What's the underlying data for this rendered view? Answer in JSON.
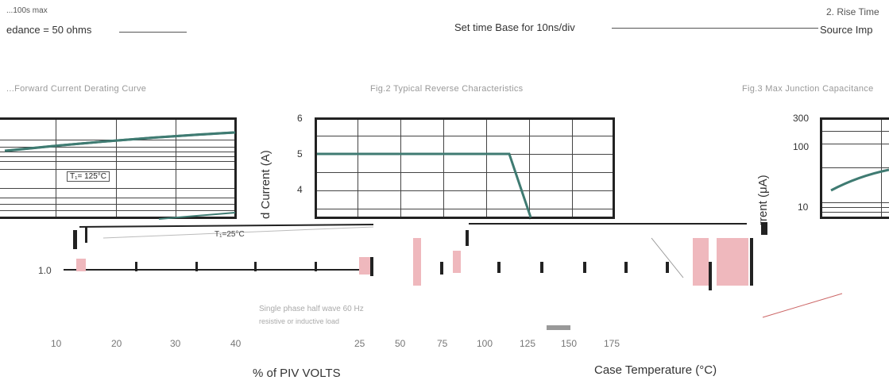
{
  "header": {
    "top_left": "...100s max",
    "impedance_left": "edance = 50 ohms",
    "time_base": "Set time Base for 10ns/div",
    "top_right": "2. Rise Time",
    "impedance_right": "Source Imp"
  },
  "captions": {
    "fig1": "...Forward Current Derating Curve",
    "fig2": "Fig.2 Typical Reverse Characteristics",
    "fig3": "Fig.3 Max Junction Capacitance"
  },
  "fig1": {
    "curve_label": "T₁= 125°C",
    "curve_label2": "T₁=25°C",
    "value_label": "1.0",
    "x_ticks": [
      "10",
      "20",
      "30",
      "40"
    ],
    "x_label": "% of PIV VOLTS"
  },
  "fig2": {
    "y_label": "d Current (A)",
    "y_ticks": [
      "6",
      "5",
      "4"
    ],
    "x_ticks": [
      "25",
      "50",
      "75",
      "100",
      "125",
      "150",
      "175"
    ],
    "x_label": "Case Temperature (°C)",
    "legend_line1": "Single phase half wave 60 Hz",
    "legend_line2": "resistive or inductive load"
  },
  "fig3": {
    "y_label": "rrent (μA)",
    "y_ticks": [
      "300",
      "100",
      "10"
    ]
  },
  "colors": {
    "curve": "#3f7b72",
    "grid": "#222222",
    "highlight": "#efb8bd"
  }
}
